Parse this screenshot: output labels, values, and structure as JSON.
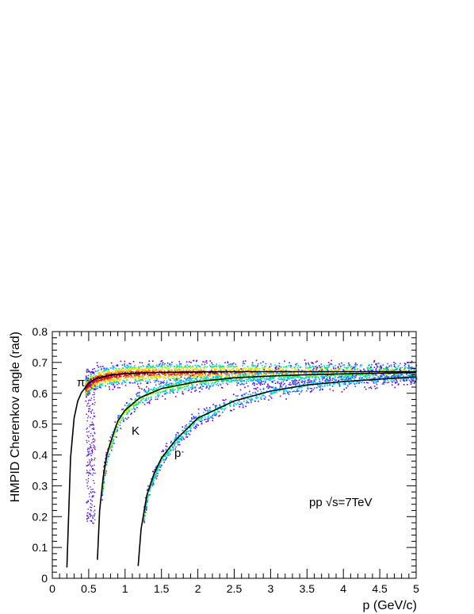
{
  "chart_data": {
    "type": "scatter",
    "title": "",
    "xlabel": "p (GeV/c)",
    "ylabel": "HMPID Cherenkov angle (rad)",
    "xlim": [
      0,
      5
    ],
    "ylim": [
      0,
      0.8
    ],
    "x_ticks": [
      "0",
      "0.5",
      "1",
      "1.5",
      "2",
      "2.5",
      "3",
      "3.5",
      "4",
      "4.5",
      "5"
    ],
    "y_ticks": [
      "0",
      "0.1",
      "0.2",
      "0.3",
      "0.4",
      "0.5",
      "0.6",
      "0.7",
      "0.8"
    ],
    "grid": false,
    "annotations": {
      "pion_label": "π",
      "kaon_label": "K",
      "proton_label": "p",
      "collision_system": "pp √s=7TeV"
    },
    "series": [
      {
        "particle": "π",
        "color": "#000000",
        "x": [
          0.2,
          0.25,
          0.3,
          0.35,
          0.4,
          0.5,
          0.6,
          0.8,
          1.0,
          1.5,
          2.0,
          2.5,
          3.0,
          3.5,
          4.0,
          4.5,
          5.0
        ],
        "y": [
          0.035,
          0.39,
          0.52,
          0.575,
          0.602,
          0.633,
          0.648,
          0.659,
          0.664,
          0.668,
          0.669,
          0.67,
          0.67,
          0.67,
          0.67,
          0.67,
          0.67
        ]
      },
      {
        "particle": "K",
        "color": "#000000",
        "x": [
          0.62,
          0.65,
          0.7,
          0.75,
          0.8,
          0.9,
          1.0,
          1.2,
          1.5,
          2.0,
          2.5,
          3.0,
          3.5,
          4.0,
          4.5,
          5.0
        ],
        "y": [
          0.06,
          0.22,
          0.33,
          0.4,
          0.44,
          0.51,
          0.545,
          0.585,
          0.615,
          0.638,
          0.65,
          0.656,
          0.66,
          0.663,
          0.665,
          0.667
        ]
      },
      {
        "particle": "p",
        "color": "#000000",
        "x": [
          1.18,
          1.22,
          1.3,
          1.4,
          1.5,
          1.7,
          2.0,
          2.5,
          3.0,
          3.5,
          4.0,
          4.5,
          5.0
        ],
        "y": [
          0.04,
          0.16,
          0.27,
          0.34,
          0.39,
          0.45,
          0.52,
          0.575,
          0.607,
          0.627,
          0.638,
          0.646,
          0.653
        ]
      }
    ],
    "density_colormap": [
      "#6a00c8",
      "#2f4bff",
      "#00c8ff",
      "#00e07a",
      "#bff000",
      "#ffd000",
      "#ff7800",
      "#d01010"
    ]
  }
}
